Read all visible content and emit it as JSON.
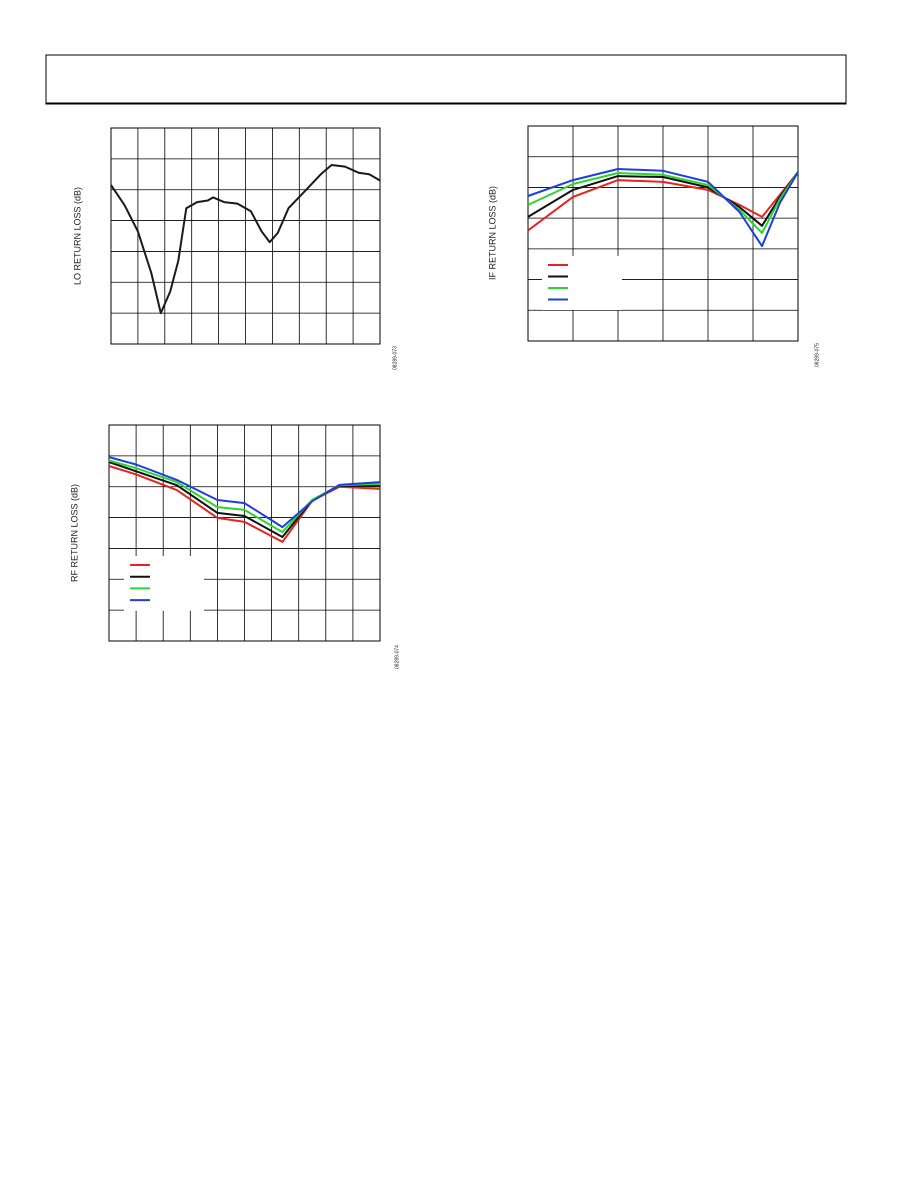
{
  "chart_data": [
    {
      "type": "line",
      "y_label": "LO RETURN LOSS (dB)",
      "figure_id": "08289-073",
      "xlim": [
        0,
        10
      ],
      "ylim": [
        0,
        7
      ],
      "x": [
        0,
        0.5,
        1,
        1.5,
        1.85,
        2.2,
        2.5,
        2.8,
        3.2,
        3.6,
        3.8,
        4.2,
        4.7,
        5.2,
        5.6,
        5.9,
        6.2,
        6.6,
        7.2,
        7.8,
        8.2,
        8.7,
        9.2,
        9.6,
        10
      ],
      "series": [
        {
          "color": "#1a1a1a",
          "values": [
            5.15,
            4.5,
            3.65,
            2.3,
            1.0,
            1.7,
            2.7,
            4.4,
            4.6,
            4.65,
            4.75,
            4.6,
            4.55,
            4.3,
            3.65,
            3.3,
            3.6,
            4.4,
            4.95,
            5.5,
            5.8,
            5.75,
            5.55,
            5.5,
            5.3
          ]
        }
      ]
    },
    {
      "type": "line",
      "y_label": "IF RETURN LOSS (dB)",
      "figure_id": "08289-075",
      "xlim": [
        0,
        6
      ],
      "ylim": [
        0,
        7
      ],
      "x": [
        0,
        1,
        2,
        3,
        4,
        4.7,
        5.2,
        5.6,
        6
      ],
      "series": [
        {
          "color": "#e8221f",
          "values": [
            3.6,
            4.69,
            5.24,
            5.18,
            4.92,
            4.43,
            4.04,
            4.76,
            5.5
          ]
        },
        {
          "color": "#111111",
          "values": [
            4.04,
            4.92,
            5.37,
            5.34,
            5.0,
            4.36,
            3.75,
            4.69,
            5.5
          ]
        },
        {
          "color": "#2bd62b",
          "values": [
            4.43,
            5.11,
            5.47,
            5.41,
            5.08,
            4.27,
            3.52,
            4.63,
            5.5
          ]
        },
        {
          "color": "#1b3fe0",
          "values": [
            4.72,
            5.24,
            5.6,
            5.54,
            5.18,
            4.2,
            3.09,
            4.5,
            5.5
          ]
        }
      ]
    },
    {
      "type": "line",
      "y_label": "RF RETURN LOSS (dB)",
      "figure_id": "08289-074",
      "xlim": [
        0,
        10
      ],
      "ylim": [
        0,
        7
      ],
      "x": [
        0,
        1,
        2.5,
        4,
        5,
        6.4,
        7.5,
        8.5,
        10
      ],
      "series": [
        {
          "color": "#e8221f",
          "values": [
            5.67,
            5.4,
            4.89,
            3.99,
            3.86,
            3.21,
            4.55,
            5.0,
            4.93
          ]
        },
        {
          "color": "#111111",
          "values": [
            5.8,
            5.5,
            5.05,
            4.15,
            4.05,
            3.37,
            4.57,
            5.03,
            5.02
          ]
        },
        {
          "color": "#2bd62b",
          "values": [
            5.85,
            5.6,
            5.15,
            4.34,
            4.25,
            3.53,
            4.58,
            5.05,
            5.09
          ]
        },
        {
          "color": "#1b3fe0",
          "values": [
            5.96,
            5.72,
            5.22,
            4.57,
            4.47,
            3.69,
            4.53,
            5.06,
            5.15
          ]
        }
      ]
    }
  ]
}
